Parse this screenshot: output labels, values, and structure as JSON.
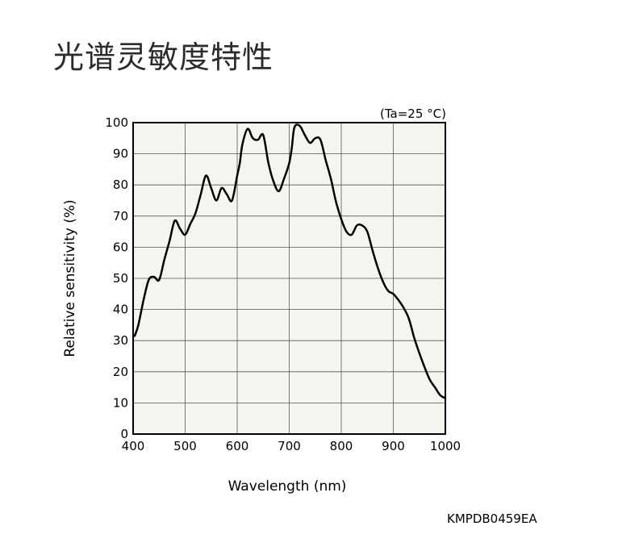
{
  "page": {
    "title": "光谱灵敏度特性",
    "code": "KMPDB0459EA"
  },
  "chart_data": {
    "type": "line",
    "title": "",
    "annotation": "(Ta=25 °C)",
    "xlabel": "Wavelength (nm)",
    "ylabel": "Relative sensitivity (%)",
    "xlim": [
      400,
      1000
    ],
    "ylim": [
      0,
      100
    ],
    "xticks": [
      400,
      500,
      600,
      700,
      800,
      900,
      1000
    ],
    "yticks": [
      0,
      10,
      20,
      30,
      40,
      50,
      60,
      70,
      80,
      90,
      100
    ],
    "grid": true,
    "colors": {
      "plot_background": "#f5f5f0",
      "line": "#000000",
      "grid": "#555555"
    },
    "series": [
      {
        "x": [
          403,
          410,
          420,
          430,
          440,
          450,
          460,
          470,
          480,
          490,
          500,
          510,
          520,
          530,
          540,
          550,
          560,
          570,
          580,
          590,
          600,
          605,
          610,
          620,
          630,
          640,
          650,
          660,
          670,
          680,
          690,
          700,
          705,
          710,
          720,
          730,
          740,
          750,
          760,
          770,
          780,
          790,
          800,
          810,
          820,
          830,
          840,
          850,
          860,
          870,
          880,
          890,
          900,
          910,
          920,
          930,
          940,
          950,
          960,
          970,
          980,
          990,
          1000
        ],
        "y": [
          31.5,
          35,
          43,
          49.5,
          50.5,
          49.5,
          56,
          62,
          68.5,
          66,
          64,
          67.5,
          71,
          77,
          83,
          79,
          75,
          79,
          77,
          75,
          83,
          87,
          93,
          98,
          95,
          94.5,
          96,
          87,
          81,
          78,
          82,
          87,
          92,
          98.5,
          99,
          96,
          93.5,
          95,
          94.5,
          88,
          82,
          74.5,
          69,
          65,
          64,
          67,
          67,
          65,
          59,
          53.5,
          49,
          46,
          45,
          43,
          40.5,
          37,
          31,
          26,
          21.5,
          17.5,
          15,
          12.5,
          11.5
        ]
      }
    ]
  }
}
